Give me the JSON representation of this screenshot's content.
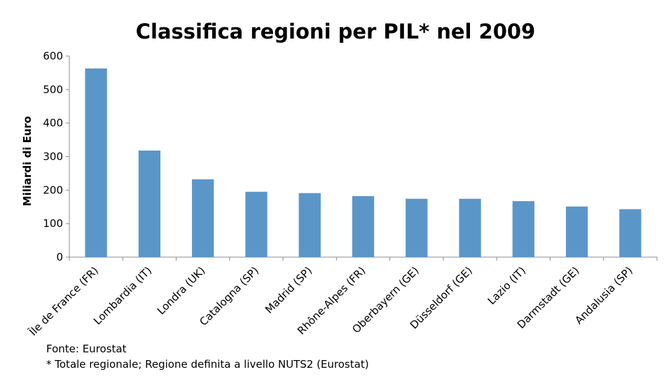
{
  "chart_data": {
    "type": "bar",
    "title": "Classifica regioni per PIL* nel 2009",
    "xlabel": "",
    "ylabel": "Miliardi di Euro",
    "categories": [
      "Île de France (FR)",
      "Lombardia (IT)",
      "Londra (UK)",
      "Catalogna (SP)",
      "Madrid (SP)",
      "Rhône-Alpes (FR)",
      "Oberbayern (GE)",
      "Düsseldorf (GE)",
      "Lazio (IT)",
      "Darmstadt (GE)",
      "Andalusia (SP)"
    ],
    "values": [
      563,
      318,
      232,
      195,
      191,
      182,
      174,
      174,
      167,
      151,
      143
    ],
    "ylim": [
      0,
      600
    ],
    "yticks": [
      0,
      100,
      200,
      300,
      400,
      500,
      600
    ],
    "grid": false,
    "bar_color": "#5b96c9"
  },
  "footnotes": {
    "source": "Fonte: Eurostat",
    "note": "* Totale regionale; Regione definita a livello NUTS2 (Eurostat)"
  }
}
